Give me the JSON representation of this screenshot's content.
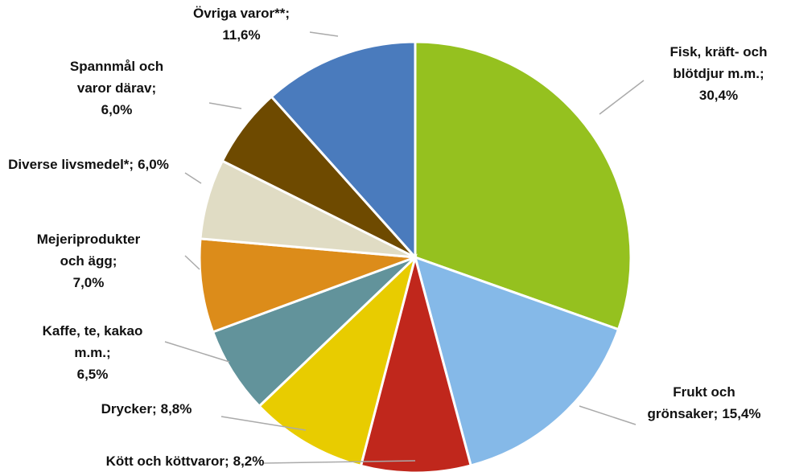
{
  "chart_data": {
    "type": "pie",
    "categories": [
      [
        "Fisk, kräft- och",
        "blötdjur  m.m.;"
      ],
      [
        "Frukt och",
        "grönsaker;"
      ],
      [
        "Kött och köttvaror;"
      ],
      [
        "Drycker;"
      ],
      [
        "Kaffe, te, kakao",
        "m.m.;"
      ],
      [
        "Mejeriprodukter",
        "och ägg;"
      ],
      [
        "Diverse livsmedel*;"
      ],
      [
        "Spannmål och",
        "varor därav;"
      ],
      [
        "Övriga varor**;"
      ]
    ],
    "values": [
      30.4,
      15.4,
      8.2,
      8.8,
      6.5,
      7.0,
      6.0,
      6.0,
      11.6
    ],
    "value_labels": [
      "30,4%",
      "15,4%",
      "8,2%",
      "8,8%",
      "6,5%",
      "7,0%",
      "6,0%",
      "6,0%",
      "11,6%"
    ],
    "colors": [
      "#95c11f",
      "#85b9e8",
      "#c0271c",
      "#e8cc00",
      "#62939b",
      "#dc8c1a",
      "#e0dcc4",
      "#6e4a00",
      "#4a7bbd"
    ]
  }
}
